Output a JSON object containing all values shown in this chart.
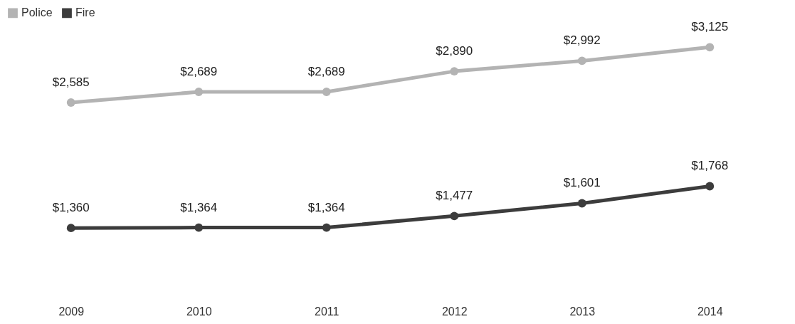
{
  "chart_data": {
    "type": "line",
    "categories": [
      "2009",
      "2010",
      "2011",
      "2012",
      "2013",
      "2014"
    ],
    "series": [
      {
        "name": "Police",
        "color": "#b3b3b3",
        "values": [
          2585,
          2689,
          2689,
          2890,
          2992,
          3125
        ],
        "value_labels": [
          "$2,585",
          "$2,689",
          "$2,689",
          "$2,890",
          "$2,992",
          "$3,125"
        ]
      },
      {
        "name": "Fire",
        "color": "#3c3c3c",
        "values": [
          1360,
          1364,
          1364,
          1477,
          1601,
          1768
        ],
        "value_labels": [
          "$1,360",
          "$1,364",
          "$1,364",
          "$1,477",
          "$1,601",
          "$1,768"
        ]
      }
    ],
    "legend": "top",
    "marker": "circle"
  }
}
